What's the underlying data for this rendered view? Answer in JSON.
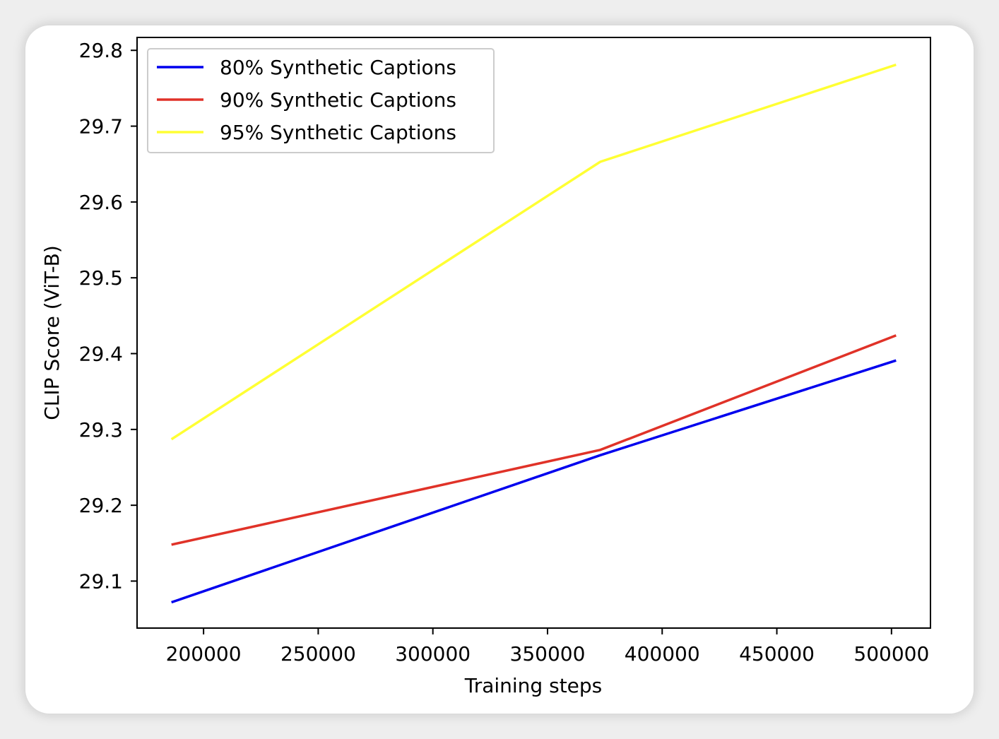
{
  "chart_data": {
    "type": "line",
    "title": "",
    "xlabel": "Training steps",
    "ylabel": "CLIP Score (ViT-B)",
    "x": [
      186000,
      373000,
      502000
    ],
    "xlim": [
      171000,
      517000
    ],
    "ylim": [
      29.038,
      29.817
    ],
    "xticks": [
      200000,
      250000,
      300000,
      350000,
      400000,
      450000,
      500000
    ],
    "xtick_labels": [
      "200000",
      "250000",
      "300000",
      "350000",
      "400000",
      "450000",
      "500000"
    ],
    "yticks": [
      29.1,
      29.2,
      29.3,
      29.4,
      29.5,
      29.6,
      29.7,
      29.8
    ],
    "ytick_labels": [
      "29.1",
      "29.2",
      "29.3",
      "29.4",
      "29.5",
      "29.6",
      "29.7",
      "29.8"
    ],
    "series": [
      {
        "name": "80% Synthetic Captions",
        "color": "#0000ee",
        "values": [
          29.072,
          29.266,
          29.391
        ]
      },
      {
        "name": "90% Synthetic Captions",
        "color": "#e03228",
        "values": [
          29.148,
          29.273,
          29.424
        ]
      },
      {
        "name": "95% Synthetic Captions",
        "color": "#ffff33",
        "values": [
          29.287,
          29.653,
          29.781
        ]
      }
    ],
    "grid": false,
    "legend_position": "top-left"
  }
}
